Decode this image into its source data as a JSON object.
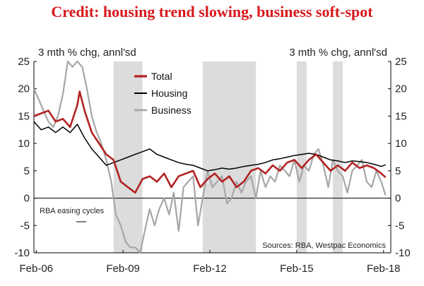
{
  "chart_data": {
    "type": "line",
    "title": "Credit: housing trend slowing, business soft-spot",
    "ylabel_left": "3 mth % chg, annl'sd",
    "ylabel_right": "3 mth % chg, annl'sd",
    "ylim": [
      -10,
      25
    ],
    "yticks": [
      25,
      20,
      15,
      10,
      5,
      0,
      -5,
      -10
    ],
    "x_domain": [
      2006.0,
      2018.33
    ],
    "xticks": [
      {
        "label": "Feb-06",
        "x": 2006.08
      },
      {
        "label": "Feb-09",
        "x": 2009.08
      },
      {
        "label": "Feb-12",
        "x": 2012.08
      },
      {
        "label": "Feb-15",
        "x": 2015.08
      },
      {
        "label": "Feb-18",
        "x": 2018.08
      }
    ],
    "shaded_label": "RBA easing cycles",
    "shaded_periods": [
      [
        2008.75,
        2009.75
      ],
      [
        2011.83,
        2013.67
      ],
      [
        2015.08,
        2015.42
      ],
      [
        2016.33,
        2016.67
      ]
    ],
    "source": "Sources: RBA, Westpac Economics",
    "colors": {
      "total": "#b22222",
      "housing": "#000000",
      "business": "#a6a6a6",
      "shade": "#dcdcdc",
      "title": "#d7191c"
    },
    "series": [
      {
        "name": "Total",
        "x": [
          2006.0,
          2006.25,
          2006.5,
          2006.75,
          2007.0,
          2007.25,
          2007.5,
          2007.58,
          2007.75,
          2008.0,
          2008.25,
          2008.5,
          2008.75,
          2009.0,
          2009.25,
          2009.5,
          2009.75,
          2010.0,
          2010.25,
          2010.5,
          2010.75,
          2011.0,
          2011.25,
          2011.5,
          2011.75,
          2012.0,
          2012.25,
          2012.5,
          2012.75,
          2013.0,
          2013.25,
          2013.5,
          2013.75,
          2014.0,
          2014.25,
          2014.5,
          2014.75,
          2015.0,
          2015.25,
          2015.5,
          2015.75,
          2016.0,
          2016.25,
          2016.5,
          2016.75,
          2017.0,
          2017.25,
          2017.5,
          2017.75,
          2018.0,
          2018.15
        ],
        "values": [
          15,
          15.5,
          16,
          14,
          14.5,
          13,
          17,
          19.5,
          16,
          12,
          10,
          8,
          7,
          3,
          2,
          1,
          3.5,
          4,
          3,
          4.5,
          2,
          4,
          4.5,
          5,
          2,
          3.5,
          4.5,
          3,
          4,
          2,
          3,
          5,
          5.5,
          4.5,
          6,
          5,
          6.5,
          7,
          5.5,
          7,
          8,
          6.5,
          5,
          6,
          5,
          6.5,
          5.5,
          6,
          5.5,
          4.5,
          3.8
        ]
      },
      {
        "name": "Housing",
        "x": [
          2006.0,
          2006.25,
          2006.5,
          2006.75,
          2007.0,
          2007.25,
          2007.5,
          2007.75,
          2008.0,
          2008.25,
          2008.5,
          2008.75,
          2009.0,
          2009.25,
          2009.5,
          2009.75,
          2010.0,
          2010.25,
          2010.5,
          2010.75,
          2011.0,
          2011.25,
          2011.5,
          2011.75,
          2012.0,
          2012.25,
          2012.5,
          2012.75,
          2013.0,
          2013.25,
          2013.5,
          2013.75,
          2014.0,
          2014.25,
          2014.5,
          2014.75,
          2015.0,
          2015.25,
          2015.5,
          2015.75,
          2016.0,
          2016.25,
          2016.5,
          2016.75,
          2017.0,
          2017.25,
          2017.5,
          2017.75,
          2018.0,
          2018.15
        ],
        "values": [
          14,
          12.5,
          13,
          12,
          13,
          12,
          13.5,
          11,
          9,
          7.5,
          6,
          6.5,
          7,
          7.5,
          8,
          8.5,
          9,
          8,
          7.5,
          7,
          6.5,
          6.2,
          6,
          5.5,
          5,
          5.2,
          5.5,
          5.3,
          5.5,
          5.8,
          6,
          6.2,
          6.5,
          7,
          7.2,
          7.5,
          7.8,
          8,
          8.2,
          8,
          7.5,
          7,
          6.8,
          6.5,
          6.8,
          6.7,
          6.5,
          6.2,
          5.8,
          6.1
        ]
      },
      {
        "name": "Business",
        "x": [
          2006.0,
          2006.17,
          2006.33,
          2006.5,
          2006.67,
          2006.83,
          2007.0,
          2007.17,
          2007.33,
          2007.5,
          2007.67,
          2007.83,
          2008.0,
          2008.17,
          2008.33,
          2008.5,
          2008.67,
          2008.83,
          2009.0,
          2009.17,
          2009.33,
          2009.5,
          2009.67,
          2009.83,
          2010.0,
          2010.17,
          2010.33,
          2010.5,
          2010.67,
          2010.83,
          2011.0,
          2011.17,
          2011.33,
          2011.5,
          2011.67,
          2011.83,
          2012.0,
          2012.17,
          2012.33,
          2012.5,
          2012.67,
          2012.83,
          2013.0,
          2013.17,
          2013.33,
          2013.5,
          2013.67,
          2013.83,
          2014.0,
          2014.17,
          2014.33,
          2014.5,
          2014.67,
          2014.83,
          2015.0,
          2015.17,
          2015.33,
          2015.5,
          2015.67,
          2015.83,
          2016.0,
          2016.17,
          2016.33,
          2016.5,
          2016.67,
          2016.83,
          2017.0,
          2017.17,
          2017.33,
          2017.5,
          2017.67,
          2017.83,
          2018.0,
          2018.15
        ],
        "values": [
          20,
          18,
          16,
          14,
          13,
          15,
          19,
          25,
          24,
          25,
          24,
          20,
          15,
          12,
          10,
          7,
          3,
          -3,
          -5,
          -8,
          -9,
          -9,
          -10,
          -6,
          -2,
          -5,
          -2,
          0,
          -3,
          1,
          -6,
          2,
          3,
          4,
          -5,
          0,
          5,
          2,
          3,
          4,
          -1,
          0,
          3,
          1,
          3,
          4,
          0,
          5,
          2,
          4,
          3,
          6,
          5,
          4,
          7,
          3,
          6,
          5,
          8,
          9,
          6,
          2,
          7,
          5,
          4,
          1,
          5,
          6,
          7,
          3,
          2,
          5,
          3,
          0.5
        ]
      }
    ]
  }
}
